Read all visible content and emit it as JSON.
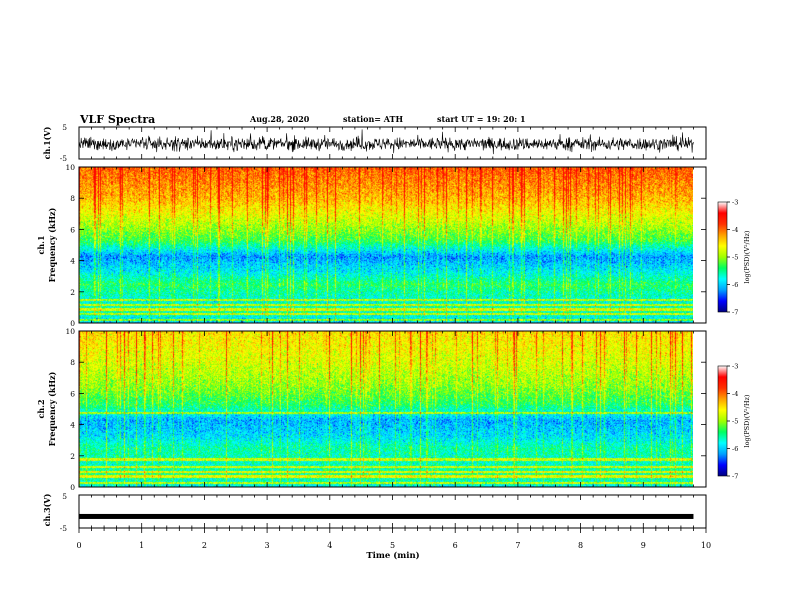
{
  "header": {
    "title": "VLF Spectra",
    "date": "Aug.28, 2020",
    "station": "station= ATH",
    "start_ut": "start  UT =   19: 20: 1"
  },
  "chart_data": [
    {
      "type": "line",
      "name": "ch1-waveform",
      "ylabel": "ch.1(V)",
      "ylim": [
        -5,
        5
      ],
      "y_ticks": [
        "5",
        "-5"
      ],
      "xlim": [
        0,
        10
      ],
      "x_end": 9.8,
      "baseline_v": -0.3,
      "amplitude_v": 3.5
    },
    {
      "type": "heatmap",
      "name": "ch1-spectrogram",
      "ylabel": "ch.1\nFrequency (kHz)",
      "ylim": [
        0,
        10
      ],
      "y_ticks": [
        "0",
        "2",
        "4",
        "6",
        "8",
        "10"
      ],
      "xlim": [
        0,
        10
      ],
      "x_end": 9.8,
      "colorbar": {
        "label": "log(PSD)(V²/Hz)",
        "range": [
          -7,
          -3
        ],
        "ticks": [
          "-3",
          "-4",
          "-5",
          "-6",
          "-7"
        ]
      },
      "level_profile": [
        {
          "khz": 0.0,
          "log_psd": -5.9
        },
        {
          "khz": 0.8,
          "log_psd": -5.4
        },
        {
          "khz": 1.5,
          "log_psd": -5.6
        },
        {
          "khz": 2.5,
          "log_psd": -5.2
        },
        {
          "khz": 3.3,
          "log_psd": -5.7
        },
        {
          "khz": 4.3,
          "log_psd": -6.1
        },
        {
          "khz": 5.3,
          "log_psd": -5.1
        },
        {
          "khz": 6.5,
          "log_psd": -4.6
        },
        {
          "khz": 8.0,
          "log_psd": -4.0
        },
        {
          "khz": 10.0,
          "log_psd": -3.6
        }
      ],
      "persistent_lines_khz": [
        0.25,
        0.6,
        0.9,
        1.2,
        1.5
      ]
    },
    {
      "type": "heatmap",
      "name": "ch2-spectrogram",
      "ylabel": "ch.2\nFrequency (kHz)",
      "ylim": [
        0,
        10
      ],
      "y_ticks": [
        "0",
        "2",
        "4",
        "6",
        "8",
        "10"
      ],
      "xlim": [
        0,
        10
      ],
      "x_end": 9.8,
      "colorbar": {
        "label": "log(PSD)(V²/Hz)",
        "range": [
          -7,
          -3
        ],
        "ticks": [
          "-3",
          "-4",
          "-5",
          "-6",
          "-7"
        ]
      },
      "level_profile": [
        {
          "khz": 0.0,
          "log_psd": -5.7
        },
        {
          "khz": 0.8,
          "log_psd": -5.3
        },
        {
          "khz": 1.5,
          "log_psd": -5.5
        },
        {
          "khz": 2.5,
          "log_psd": -5.4
        },
        {
          "khz": 3.3,
          "log_psd": -5.8
        },
        {
          "khz": 4.3,
          "log_psd": -6.0
        },
        {
          "khz": 5.3,
          "log_psd": -5.2
        },
        {
          "khz": 6.5,
          "log_psd": -4.8
        },
        {
          "khz": 8.0,
          "log_psd": -4.5
        },
        {
          "khz": 10.0,
          "log_psd": -4.2
        }
      ],
      "persistent_lines_khz": [
        0.3,
        0.7,
        1.0,
        1.3,
        1.8,
        4.8
      ]
    },
    {
      "type": "line",
      "name": "ch3-waveform",
      "ylabel": "ch.3(V)",
      "ylim": [
        -5,
        5
      ],
      "y_ticks": [
        "5",
        "-5"
      ],
      "xlabel": "Time  (min)",
      "x_ticks": [
        "0",
        "1",
        "2",
        "3",
        "4",
        "5",
        "6",
        "7",
        "8",
        "9",
        "10"
      ],
      "xlim": [
        0,
        10
      ],
      "x_end": 9.8,
      "level_v": -1.5
    }
  ],
  "colors": {
    "waveform": "#000000",
    "colormap": [
      "#000080",
      "#0000ff",
      "#00a0ff",
      "#00ffff",
      "#00ff60",
      "#a0ff00",
      "#ffff00",
      "#ffa000",
      "#ff3000",
      "#ff0000",
      "#ffffff"
    ]
  }
}
